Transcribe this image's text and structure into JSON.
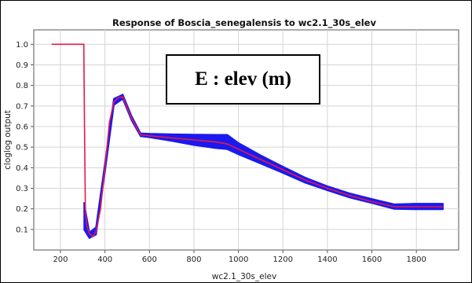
{
  "chart_data": {
    "type": "line",
    "title": "Response of Boscia_senegalensis to wc2.1_30s_elev",
    "xlabel": "wc2.1_30s_elev",
    "ylabel": "cloglog output",
    "xlim": [
      80,
      1990
    ],
    "ylim": [
      0.0,
      1.07
    ],
    "x_ticks": [
      200,
      400,
      600,
      800,
      1000,
      1200,
      1400,
      1600,
      1800,
      2000
    ],
    "y_ticks": [
      0.1,
      0.2,
      0.3,
      0.4,
      0.5,
      0.6,
      0.7,
      0.8,
      0.9,
      1.0
    ],
    "grid": true,
    "annotation": "E : elev (m)",
    "series": [
      {
        "role": "mean response",
        "color": "#e8174a",
        "x": [
          160,
          305,
          308,
          312,
          318,
          330,
          345,
          360,
          380,
          400,
          420,
          440,
          460,
          480,
          500,
          520,
          540,
          560,
          600,
          700,
          800,
          900,
          950,
          1000,
          1100,
          1200,
          1300,
          1400,
          1500,
          1600,
          1700,
          1790,
          1920
        ],
        "y": [
          1.0,
          1.0,
          0.6,
          0.2,
          0.12,
          0.08,
          0.065,
          0.09,
          0.2,
          0.4,
          0.62,
          0.72,
          0.74,
          0.745,
          0.69,
          0.64,
          0.6,
          0.56,
          0.555,
          0.545,
          0.535,
          0.525,
          0.515,
          0.49,
          0.44,
          0.39,
          0.34,
          0.3,
          0.265,
          0.235,
          0.21,
          0.21,
          0.21
        ]
      },
      {
        "role": "variation band",
        "color": "#1a1aee",
        "x": [
          306,
          330,
          360,
          400,
          440,
          480,
          520,
          560,
          600,
          700,
          800,
          900,
          950,
          1000,
          1100,
          1200,
          1300,
          1400,
          1500,
          1600,
          1700,
          1790,
          1920
        ],
        "y_upper": [
          0.23,
          0.085,
          0.11,
          0.42,
          0.735,
          0.755,
          0.65,
          0.567,
          0.565,
          0.563,
          0.561,
          0.56,
          0.56,
          0.52,
          0.46,
          0.405,
          0.352,
          0.31,
          0.275,
          0.248,
          0.222,
          0.225,
          0.225
        ],
        "y_lower": [
          0.1,
          0.058,
          0.075,
          0.38,
          0.705,
          0.735,
          0.63,
          0.553,
          0.548,
          0.53,
          0.51,
          0.495,
          0.49,
          0.465,
          0.42,
          0.375,
          0.327,
          0.29,
          0.255,
          0.228,
          0.2,
          0.198,
          0.198
        ]
      }
    ]
  }
}
